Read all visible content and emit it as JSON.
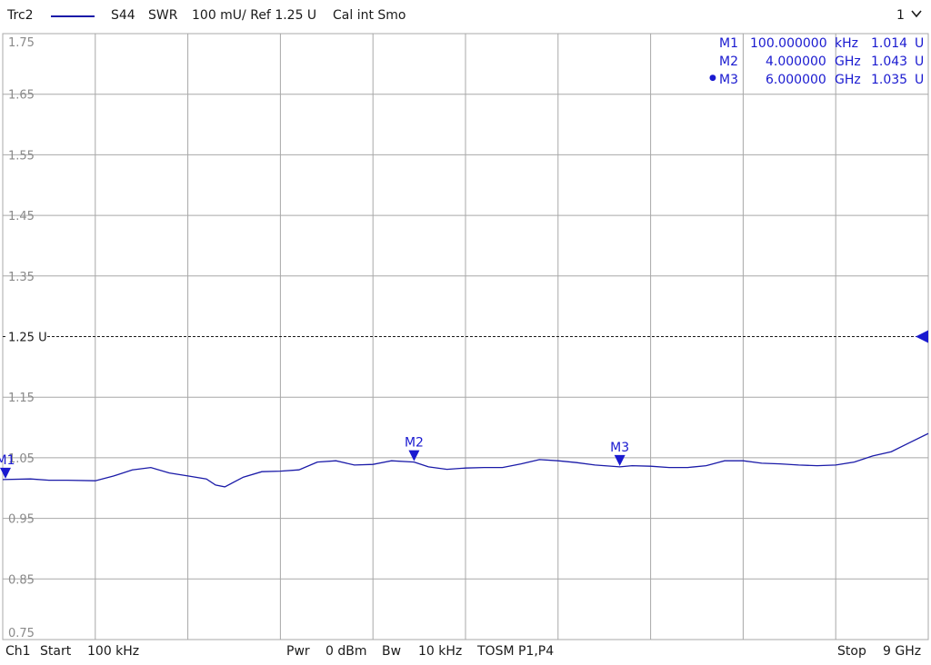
{
  "header": {
    "trace": "Trc2",
    "param": "S44",
    "format": "SWR",
    "scale": "100 mU/ Ref 1.25 U",
    "cal": "Cal int Smo",
    "window": "1",
    "trace_color": "#1a1aa8"
  },
  "footer": {
    "channel": "Ch1",
    "start_label": "Start",
    "start_value": "100 kHz",
    "pwr_label": "Pwr",
    "pwr_value": "0 dBm",
    "bw_label": "Bw",
    "bw_value": "10 kHz",
    "cal_type": "TOSM P1,P4",
    "stop_label": "Stop",
    "stop_value": "9 GHz"
  },
  "markers": [
    {
      "name": "M1",
      "active": false,
      "freq": "100.000000",
      "unit": "kHz",
      "value": "1.014",
      "vunit": "U"
    },
    {
      "name": "M2",
      "active": false,
      "freq": "4.000000",
      "unit": "GHz",
      "value": "1.043",
      "vunit": "U"
    },
    {
      "name": "M3",
      "active": true,
      "freq": "6.000000",
      "unit": "GHz",
      "value": "1.035",
      "vunit": "U"
    }
  ],
  "chart_data": {
    "type": "line",
    "title": "",
    "xlabel": "",
    "ylabel": "",
    "xlim": [
      0.0001,
      9
    ],
    "x_unit": "GHz",
    "ylim": [
      0.75,
      1.75
    ],
    "y_ticks": [
      "1.75",
      "1.65",
      "1.55",
      "1.45",
      "1.35",
      "1.25 U",
      "1.15",
      "1.05",
      "0.95",
      "0.85",
      "0.75"
    ],
    "reference_level": 1.25,
    "grid": true,
    "series": [
      {
        "x": [
          0.0001,
          0.27,
          0.45,
          0.63,
          0.9,
          1.08,
          1.26,
          1.44,
          1.62,
          1.8,
          1.98,
          2.07,
          2.16,
          2.34,
          2.52,
          2.7,
          2.88,
          3.06,
          3.24,
          3.42,
          3.6,
          3.78,
          4.0,
          4.14,
          4.32,
          4.5,
          4.68,
          4.86,
          5.04,
          5.22,
          5.4,
          5.58,
          5.76,
          6.0,
          6.12,
          6.3,
          6.48,
          6.66,
          6.84,
          7.02,
          7.2,
          7.38,
          7.56,
          7.74,
          7.92,
          8.1,
          8.28,
          8.46,
          8.64,
          8.82,
          9.0
        ],
        "y": [
          1.014,
          1.015,
          1.013,
          1.013,
          1.012,
          1.02,
          1.03,
          1.034,
          1.025,
          1.02,
          1.015,
          1.005,
          1.002,
          1.018,
          1.027,
          1.028,
          1.03,
          1.043,
          1.045,
          1.038,
          1.039,
          1.045,
          1.043,
          1.035,
          1.031,
          1.033,
          1.034,
          1.034,
          1.04,
          1.047,
          1.045,
          1.042,
          1.038,
          1.035,
          1.037,
          1.036,
          1.034,
          1.034,
          1.037,
          1.045,
          1.045,
          1.041,
          1.04,
          1.038,
          1.037,
          1.038,
          1.043,
          1.053,
          1.06,
          1.075,
          1.09
        ]
      }
    ],
    "marker_points": [
      {
        "name": "M1",
        "x": 0.0001,
        "y": 1.014
      },
      {
        "name": "M2",
        "x": 4.0,
        "y": 1.043
      },
      {
        "name": "M3",
        "x": 6.0,
        "y": 1.035
      }
    ]
  }
}
